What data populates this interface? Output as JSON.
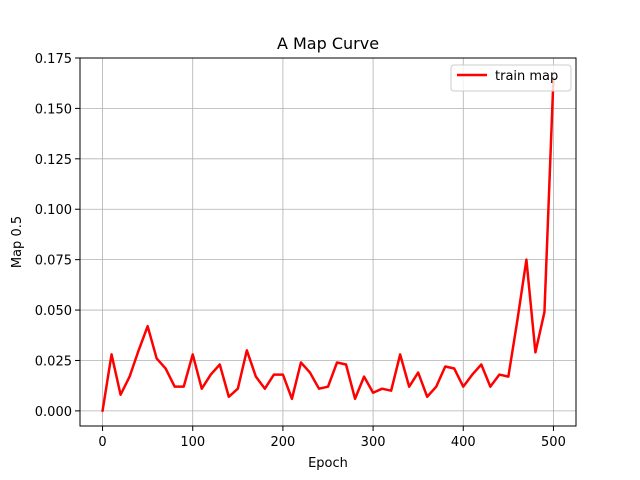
{
  "chart_data": {
    "type": "line",
    "title": "A Map Curve",
    "xlabel": "Epoch",
    "ylabel": "Map 0.5",
    "xlim": [
      -25,
      525
    ],
    "ylim": [
      -0.0075,
      0.175
    ],
    "xticks": [
      0,
      100,
      200,
      300,
      400,
      500
    ],
    "xtick_labels": [
      "0",
      "100",
      "200",
      "300",
      "400",
      "500"
    ],
    "yticks": [
      0.0,
      0.025,
      0.05,
      0.075,
      0.1,
      0.125,
      0.15,
      0.175
    ],
    "ytick_labels": [
      "0.000",
      "0.025",
      "0.050",
      "0.075",
      "0.100",
      "0.125",
      "0.150",
      "0.175"
    ],
    "grid": true,
    "legend_position": "top-right",
    "series": [
      {
        "name": "train map",
        "color": "#ff0000",
        "x": [
          0,
          10,
          20,
          30,
          40,
          50,
          60,
          70,
          80,
          90,
          100,
          110,
          120,
          130,
          140,
          150,
          160,
          170,
          180,
          190,
          200,
          210,
          220,
          230,
          240,
          250,
          260,
          270,
          280,
          290,
          300,
          310,
          320,
          330,
          340,
          350,
          360,
          370,
          380,
          390,
          400,
          410,
          420,
          430,
          440,
          450,
          460,
          470,
          480,
          490,
          500
        ],
        "y": [
          0.0,
          0.028,
          0.008,
          0.017,
          0.03,
          0.042,
          0.026,
          0.021,
          0.012,
          0.012,
          0.028,
          0.011,
          0.018,
          0.023,
          0.007,
          0.011,
          0.03,
          0.017,
          0.011,
          0.018,
          0.018,
          0.006,
          0.024,
          0.019,
          0.011,
          0.012,
          0.024,
          0.023,
          0.006,
          0.017,
          0.009,
          0.011,
          0.01,
          0.028,
          0.012,
          0.019,
          0.007,
          0.012,
          0.022,
          0.021,
          0.012,
          0.018,
          0.023,
          0.012,
          0.018,
          0.017,
          0.045,
          0.075,
          0.029,
          0.049,
          0.165
        ]
      }
    ]
  }
}
